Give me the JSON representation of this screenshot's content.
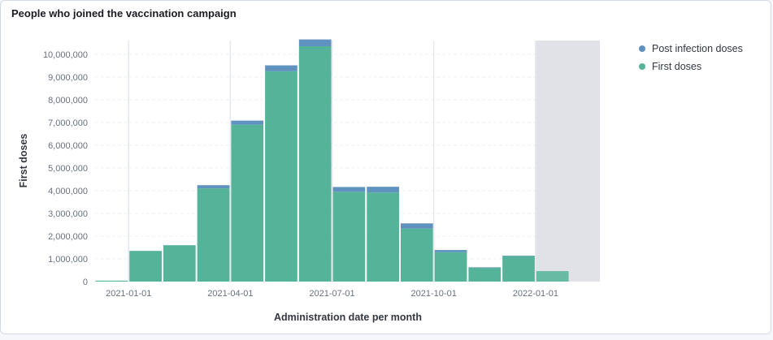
{
  "panel": {
    "title": "People who joined the vaccination campaign"
  },
  "chart_data": {
    "type": "bar",
    "stacked": true,
    "title": "People who joined the vaccination campaign",
    "xlabel": "Administration date per month",
    "ylabel": "First doses",
    "ylim": [
      0,
      10600000
    ],
    "yticks": [
      0,
      1000000,
      2000000,
      3000000,
      4000000,
      5000000,
      6000000,
      7000000,
      8000000,
      9000000,
      10000000
    ],
    "ytick_labels": [
      "0",
      "1,000,000",
      "2,000,000",
      "3,000,000",
      "4,000,000",
      "5,000,000",
      "6,000,000",
      "7,000,000",
      "8,000,000",
      "9,000,000",
      "10,000,000"
    ],
    "categories": [
      "2020-12",
      "2021-01",
      "2021-02",
      "2021-03",
      "2021-04",
      "2021-05",
      "2021-06",
      "2021-07",
      "2021-08",
      "2021-09",
      "2021-10",
      "2021-11",
      "2021-12",
      "2022-01"
    ],
    "xtick_labels": [
      {
        "label": "2021-01-01",
        "month_index": 1
      },
      {
        "label": "2021-04-01",
        "month_index": 4
      },
      {
        "label": "2021-07-01",
        "month_index": 7
      },
      {
        "label": "2021-10-01",
        "month_index": 10
      },
      {
        "label": "2022-01-01",
        "month_index": 13
      }
    ],
    "series": [
      {
        "name": "First doses",
        "color": "#54b399",
        "values": [
          40000,
          1350000,
          1600000,
          4100000,
          6900000,
          9250000,
          10350000,
          3950000,
          3920000,
          2330000,
          1290000,
          610000,
          1120000,
          460000
        ]
      },
      {
        "name": "Post infection doses",
        "color": "#6092c0",
        "values": [
          0,
          0,
          0,
          140000,
          180000,
          260000,
          300000,
          210000,
          250000,
          230000,
          100000,
          20000,
          20000,
          0
        ]
      }
    ],
    "grid": true,
    "highlighted_period": "2022-01",
    "legend_position": "right"
  },
  "legend": {
    "items": [
      {
        "label": "Post infection doses",
        "color": "#6092c0"
      },
      {
        "label": "First doses",
        "color": "#54b399"
      }
    ]
  }
}
